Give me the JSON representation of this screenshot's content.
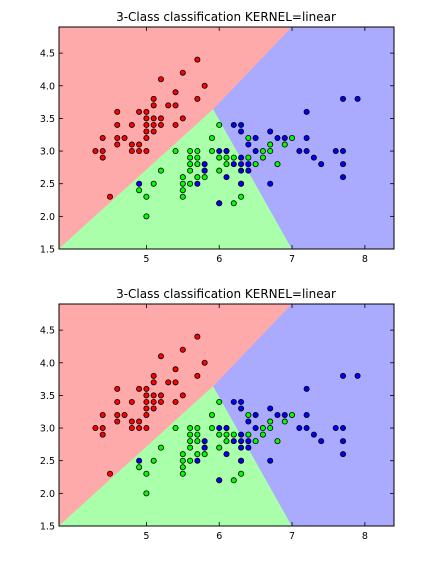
{
  "chart_data": [
    {
      "type": "scatter",
      "title": "3-Class classification KERNEL=linear",
      "xlabel": "",
      "ylabel": "",
      "xlim": [
        3.8,
        8.4
      ],
      "ylim": [
        1.5,
        4.9
      ],
      "x_ticks": [
        "5",
        "6",
        "7",
        "8"
      ],
      "y_ticks": [
        "1.5",
        "2.0",
        "2.5",
        "3.0",
        "3.5",
        "4.0",
        "4.5"
      ],
      "grid": false,
      "legend": "none",
      "background_regions": [
        {
          "name": "class-0-region",
          "color": "#ffaaaa",
          "polygon": [
            [
              3.8,
              1.5
            ],
            [
              5.92,
              3.64
            ],
            [
              7.0,
              4.9
            ],
            [
              3.8,
              4.9
            ]
          ]
        },
        {
          "name": "class-1-region",
          "color": "#aaffaa",
          "polygon": [
            [
              3.8,
              1.5
            ],
            [
              7.0,
              1.5
            ],
            [
              5.92,
              3.64
            ]
          ]
        },
        {
          "name": "class-2-region",
          "color": "#aaaaff",
          "polygon": [
            [
              7.0,
              1.5
            ],
            [
              8.4,
              1.5
            ],
            [
              8.4,
              4.9
            ],
            [
              7.0,
              4.9
            ],
            [
              5.92,
              3.64
            ]
          ]
        }
      ],
      "series": [
        {
          "color": "#ff0000",
          "points": [
            [
              4.3,
              3.0
            ],
            [
              4.4,
              2.9
            ],
            [
              4.4,
              3.0
            ],
            [
              4.4,
              3.2
            ],
            [
              4.5,
              2.3
            ],
            [
              4.6,
              3.1
            ],
            [
              4.6,
              3.2
            ],
            [
              4.6,
              3.4
            ],
            [
              4.6,
              3.6
            ],
            [
              4.7,
              3.2
            ],
            [
              4.8,
              3.0
            ],
            [
              4.8,
              3.1
            ],
            [
              4.8,
              3.4
            ],
            [
              4.9,
              3.0
            ],
            [
              4.9,
              3.1
            ],
            [
              4.9,
              3.6
            ],
            [
              5.0,
              3.0
            ],
            [
              5.0,
              3.2
            ],
            [
              5.0,
              3.3
            ],
            [
              5.0,
              3.4
            ],
            [
              5.0,
              3.5
            ],
            [
              5.0,
              3.6
            ],
            [
              5.1,
              3.3
            ],
            [
              5.1,
              3.4
            ],
            [
              5.1,
              3.5
            ],
            [
              5.1,
              3.7
            ],
            [
              5.1,
              3.8
            ],
            [
              5.2,
              3.4
            ],
            [
              5.2,
              3.5
            ],
            [
              5.2,
              4.1
            ],
            [
              5.3,
              3.7
            ],
            [
              5.4,
              3.4
            ],
            [
              5.4,
              3.7
            ],
            [
              5.4,
              3.9
            ],
            [
              5.5,
              3.5
            ],
            [
              5.5,
              4.2
            ],
            [
              5.7,
              3.8
            ],
            [
              5.7,
              4.4
            ],
            [
              5.8,
              4.0
            ]
          ]
        },
        {
          "color": "#00ff00",
          "points": [
            [
              4.9,
              2.4
            ],
            [
              5.0,
              2.0
            ],
            [
              5.0,
              2.3
            ],
            [
              5.1,
              2.5
            ],
            [
              5.2,
              2.7
            ],
            [
              5.4,
              3.0
            ],
            [
              5.5,
              2.3
            ],
            [
              5.5,
              2.4
            ],
            [
              5.5,
              2.5
            ],
            [
              5.5,
              2.6
            ],
            [
              5.6,
              2.5
            ],
            [
              5.6,
              2.7
            ],
            [
              5.6,
              2.8
            ],
            [
              5.6,
              2.9
            ],
            [
              5.6,
              3.0
            ],
            [
              5.7,
              2.6
            ],
            [
              5.7,
              2.8
            ],
            [
              5.7,
              2.9
            ],
            [
              5.7,
              3.0
            ],
            [
              5.8,
              2.6
            ],
            [
              5.8,
              2.7
            ],
            [
              5.9,
              3.0
            ],
            [
              5.9,
              3.2
            ],
            [
              6.0,
              2.2
            ],
            [
              6.0,
              2.7
            ],
            [
              6.0,
              2.9
            ],
            [
              6.0,
              3.4
            ],
            [
              6.1,
              2.8
            ],
            [
              6.1,
              2.9
            ],
            [
              6.1,
              3.0
            ],
            [
              6.2,
              2.2
            ],
            [
              6.2,
              2.9
            ],
            [
              6.3,
              2.3
            ],
            [
              6.3,
              2.5
            ],
            [
              6.4,
              2.9
            ],
            [
              6.4,
              3.2
            ],
            [
              6.5,
              2.8
            ],
            [
              6.6,
              2.9
            ],
            [
              6.6,
              3.0
            ],
            [
              6.7,
              3.0
            ],
            [
              6.7,
              3.1
            ],
            [
              6.8,
              2.8
            ],
            [
              6.9,
              3.1
            ],
            [
              7.0,
              3.2
            ]
          ]
        },
        {
          "color": "#0000ff",
          "points": [
            [
              4.9,
              2.5
            ],
            [
              5.7,
              2.5
            ],
            [
              5.8,
              2.7
            ],
            [
              5.8,
              2.8
            ],
            [
              6.0,
              2.2
            ],
            [
              6.0,
              3.0
            ],
            [
              6.1,
              2.6
            ],
            [
              6.1,
              3.0
            ],
            [
              6.2,
              2.8
            ],
            [
              6.2,
              3.4
            ],
            [
              6.3,
              2.5
            ],
            [
              6.3,
              2.7
            ],
            [
              6.3,
              2.8
            ],
            [
              6.3,
              2.9
            ],
            [
              6.3,
              3.3
            ],
            [
              6.3,
              3.4
            ],
            [
              6.4,
              2.7
            ],
            [
              6.4,
              2.8
            ],
            [
              6.4,
              3.1
            ],
            [
              6.5,
              3.0
            ],
            [
              6.5,
              3.2
            ],
            [
              6.7,
              2.5
            ],
            [
              6.7,
              3.3
            ],
            [
              6.8,
              3.2
            ],
            [
              6.9,
              3.2
            ],
            [
              7.1,
              3.0
            ],
            [
              7.2,
              3.0
            ],
            [
              7.2,
              3.2
            ],
            [
              7.2,
              3.6
            ],
            [
              7.3,
              2.9
            ],
            [
              7.4,
              2.8
            ],
            [
              7.6,
              3.0
            ],
            [
              7.7,
              2.6
            ],
            [
              7.7,
              2.8
            ],
            [
              7.7,
              3.0
            ],
            [
              7.7,
              3.8
            ],
            [
              7.9,
              3.8
            ]
          ]
        }
      ]
    },
    {
      "type": "scatter",
      "title": "3-Class classification KERNEL=linear",
      "xlabel": "",
      "ylabel": "",
      "xlim": [
        3.8,
        8.4
      ],
      "ylim": [
        1.5,
        4.9
      ],
      "x_ticks": [
        "5",
        "6",
        "7",
        "8"
      ],
      "y_ticks": [
        "1.5",
        "2.0",
        "2.5",
        "3.0",
        "3.5",
        "4.0",
        "4.5"
      ],
      "grid": false,
      "legend": "none",
      "background_regions": [
        {
          "name": "class-0-region",
          "color": "#ffaaaa",
          "polygon": [
            [
              3.8,
              1.5
            ],
            [
              5.92,
              3.64
            ],
            [
              7.0,
              4.9
            ],
            [
              3.8,
              4.9
            ]
          ]
        },
        {
          "name": "class-1-region",
          "color": "#aaffaa",
          "polygon": [
            [
              3.8,
              1.5
            ],
            [
              7.0,
              1.5
            ],
            [
              5.92,
              3.64
            ]
          ]
        },
        {
          "name": "class-2-region",
          "color": "#aaaaff",
          "polygon": [
            [
              7.0,
              1.5
            ],
            [
              8.4,
              1.5
            ],
            [
              8.4,
              4.9
            ],
            [
              7.0,
              4.9
            ],
            [
              5.92,
              3.64
            ]
          ]
        }
      ],
      "series": [
        {
          "color": "#ff0000",
          "points": [
            [
              4.3,
              3.0
            ],
            [
              4.4,
              2.9
            ],
            [
              4.4,
              3.0
            ],
            [
              4.4,
              3.2
            ],
            [
              4.5,
              2.3
            ],
            [
              4.6,
              3.1
            ],
            [
              4.6,
              3.2
            ],
            [
              4.6,
              3.4
            ],
            [
              4.6,
              3.6
            ],
            [
              4.7,
              3.2
            ],
            [
              4.8,
              3.0
            ],
            [
              4.8,
              3.1
            ],
            [
              4.8,
              3.4
            ],
            [
              4.9,
              3.0
            ],
            [
              4.9,
              3.1
            ],
            [
              4.9,
              3.6
            ],
            [
              5.0,
              3.0
            ],
            [
              5.0,
              3.2
            ],
            [
              5.0,
              3.3
            ],
            [
              5.0,
              3.4
            ],
            [
              5.0,
              3.5
            ],
            [
              5.0,
              3.6
            ],
            [
              5.1,
              3.3
            ],
            [
              5.1,
              3.4
            ],
            [
              5.1,
              3.5
            ],
            [
              5.1,
              3.7
            ],
            [
              5.1,
              3.8
            ],
            [
              5.2,
              3.4
            ],
            [
              5.2,
              3.5
            ],
            [
              5.2,
              4.1
            ],
            [
              5.3,
              3.7
            ],
            [
              5.4,
              3.4
            ],
            [
              5.4,
              3.7
            ],
            [
              5.4,
              3.9
            ],
            [
              5.5,
              3.5
            ],
            [
              5.5,
              4.2
            ],
            [
              5.7,
              3.8
            ],
            [
              5.7,
              4.4
            ],
            [
              5.8,
              4.0
            ]
          ]
        },
        {
          "color": "#00ff00",
          "points": [
            [
              4.9,
              2.4
            ],
            [
              5.0,
              2.0
            ],
            [
              5.0,
              2.3
            ],
            [
              5.1,
              2.5
            ],
            [
              5.2,
              2.7
            ],
            [
              5.4,
              3.0
            ],
            [
              5.5,
              2.3
            ],
            [
              5.5,
              2.4
            ],
            [
              5.5,
              2.5
            ],
            [
              5.5,
              2.6
            ],
            [
              5.6,
              2.5
            ],
            [
              5.6,
              2.7
            ],
            [
              5.6,
              2.8
            ],
            [
              5.6,
              2.9
            ],
            [
              5.6,
              3.0
            ],
            [
              5.7,
              2.6
            ],
            [
              5.7,
              2.8
            ],
            [
              5.7,
              2.9
            ],
            [
              5.7,
              3.0
            ],
            [
              5.8,
              2.6
            ],
            [
              5.8,
              2.7
            ],
            [
              5.9,
              3.0
            ],
            [
              5.9,
              3.2
            ],
            [
              6.0,
              2.2
            ],
            [
              6.0,
              2.7
            ],
            [
              6.0,
              2.9
            ],
            [
              6.0,
              3.4
            ],
            [
              6.1,
              2.8
            ],
            [
              6.1,
              2.9
            ],
            [
              6.1,
              3.0
            ],
            [
              6.2,
              2.2
            ],
            [
              6.2,
              2.9
            ],
            [
              6.3,
              2.3
            ],
            [
              6.3,
              2.5
            ],
            [
              6.4,
              2.9
            ],
            [
              6.4,
              3.2
            ],
            [
              6.5,
              2.8
            ],
            [
              6.6,
              2.9
            ],
            [
              6.6,
              3.0
            ],
            [
              6.7,
              3.0
            ],
            [
              6.7,
              3.1
            ],
            [
              6.8,
              2.8
            ],
            [
              6.9,
              3.1
            ],
            [
              7.0,
              3.2
            ]
          ]
        },
        {
          "color": "#0000ff",
          "points": [
            [
              4.9,
              2.5
            ],
            [
              5.7,
              2.5
            ],
            [
              5.8,
              2.7
            ],
            [
              5.8,
              2.8
            ],
            [
              6.0,
              2.2
            ],
            [
              6.0,
              3.0
            ],
            [
              6.1,
              2.6
            ],
            [
              6.1,
              3.0
            ],
            [
              6.2,
              2.8
            ],
            [
              6.2,
              3.4
            ],
            [
              6.3,
              2.5
            ],
            [
              6.3,
              2.7
            ],
            [
              6.3,
              2.8
            ],
            [
              6.3,
              2.9
            ],
            [
              6.3,
              3.3
            ],
            [
              6.3,
              3.4
            ],
            [
              6.4,
              2.7
            ],
            [
              6.4,
              2.8
            ],
            [
              6.4,
              3.1
            ],
            [
              6.5,
              3.0
            ],
            [
              6.5,
              3.2
            ],
            [
              6.7,
              2.5
            ],
            [
              6.7,
              3.3
            ],
            [
              6.8,
              3.2
            ],
            [
              6.9,
              3.2
            ],
            [
              7.1,
              3.0
            ],
            [
              7.2,
              3.0
            ],
            [
              7.2,
              3.2
            ],
            [
              7.2,
              3.6
            ],
            [
              7.3,
              2.9
            ],
            [
              7.4,
              2.8
            ],
            [
              7.6,
              3.0
            ],
            [
              7.7,
              2.6
            ],
            [
              7.7,
              2.8
            ],
            [
              7.7,
              3.0
            ],
            [
              7.7,
              3.8
            ],
            [
              7.9,
              3.8
            ]
          ]
        }
      ]
    }
  ]
}
